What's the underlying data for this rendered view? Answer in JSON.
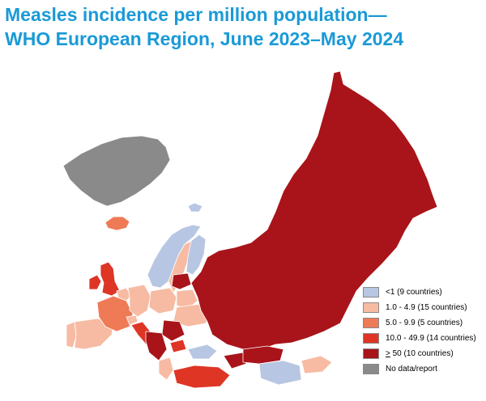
{
  "title": {
    "line1": "Measles incidence per million population—",
    "line2": "WHO European Region, June 2023–May 2024"
  },
  "legend": {
    "items": [
      {
        "prefix": "",
        "label": "<1 (9 countries)",
        "color": "#b7c6e2"
      },
      {
        "prefix": "",
        "label": "1.0 - 4.9 (15 countries)",
        "color": "#f7bba3"
      },
      {
        "prefix": "",
        "label": "5.0 - 9.9 (5 countries)",
        "color": "#ef7a56"
      },
      {
        "prefix": "",
        "label": "10.0 - 49.9 (14 countries)",
        "color": "#de3525"
      },
      {
        "prefix": ">",
        "label": " 50 (10 countries)",
        "color": "#a8141a"
      },
      {
        "prefix": "",
        "label": "No data/report",
        "color": "#8a8a8a"
      }
    ]
  },
  "map": {
    "colors": {
      "lt1": "#b7c6e2",
      "c1to5": "#f7bba3",
      "c5to10": "#ef7a56",
      "c10to50": "#de3525",
      "ge50": "#a8141a",
      "nodata": "#8a8a8a",
      "border": "#ffffff"
    }
  }
}
